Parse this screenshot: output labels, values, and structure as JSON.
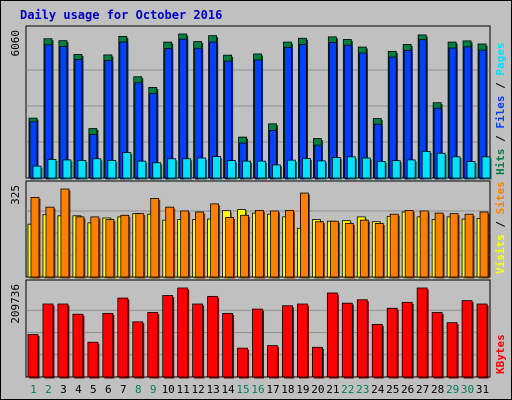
{
  "chart_data": {
    "type": "bar",
    "title": "Daily usage for October 2016",
    "days": [
      "1",
      "2",
      "3",
      "4",
      "5",
      "6",
      "7",
      "8",
      "9",
      "10",
      "11",
      "12",
      "13",
      "14",
      "15",
      "16",
      "17",
      "18",
      "19",
      "20",
      "21",
      "22",
      "23",
      "24",
      "25",
      "26",
      "27",
      "28",
      "29",
      "30",
      "31"
    ],
    "weekend_days": [
      "1",
      "2",
      "8",
      "9",
      "15",
      "16",
      "22",
      "23",
      "29",
      "30"
    ],
    "panels": [
      {
        "id": "hits",
        "ymax": 6060,
        "ymax_label": "6060",
        "series": [
          {
            "name": "Hits",
            "color": "#008040",
            "values": [
              2520,
              5860,
              5780,
              5200,
              2080,
              5180,
              5960,
              4260,
              3810,
              5720,
              6060,
              5740,
              5990,
              5170,
              1720,
              5220,
              2280,
              5720,
              5880,
              1660,
              5940,
              5830,
              5510,
              2500,
              5330,
              5620,
              6020,
              3170,
              5720,
              5770,
              5640
            ]
          },
          {
            "name": "Files",
            "color": "#0040ff",
            "values": [
              2370,
              5610,
              5530,
              4990,
              1830,
              4950,
              5720,
              4010,
              3560,
              5450,
              5840,
              5460,
              5720,
              4920,
              1470,
              4970,
              2000,
              5500,
              5620,
              1380,
              5700,
              5590,
              5260,
              2260,
              5090,
              5370,
              5820,
              2940,
              5470,
              5520,
              5380
            ]
          },
          {
            "name": "Pages",
            "color": "#00e0ff",
            "values": [
              500,
              780,
              760,
              740,
              810,
              740,
              1070,
              710,
              640,
              810,
              810,
              840,
              900,
              730,
              710,
              710,
              550,
              750,
              820,
              720,
              860,
              890,
              840,
              700,
              730,
              760,
              1120,
              1040,
              890,
              690,
              890
            ]
          }
        ]
      },
      {
        "id": "sites",
        "ymax": 325,
        "ymax_label": "325",
        "series": [
          {
            "name": "Visits",
            "color": "#ffff00",
            "values": [
              195,
              230,
              226,
              226,
              200,
              218,
              222,
              234,
              232,
              210,
              212,
              212,
              214,
              245,
              249,
              236,
              232,
              222,
              180,
              212,
              206,
              208,
              222,
              204,
              224,
              240,
              222,
              212,
              222,
              214,
              216
            ]
          },
          {
            "name": "Sites",
            "color": "#ff8000",
            "values": [
              294,
              258,
              325,
              222,
              222,
              212,
              228,
              234,
              290,
              258,
              244,
              240,
              270,
              220,
              228,
              246,
              244,
              246,
              310,
              204,
              206,
              198,
              210,
              198,
              232,
              246,
              244,
              236,
              234,
              232,
              240
            ]
          }
        ]
      },
      {
        "id": "kbytes",
        "ymax": 209736,
        "ymax_label": "209736",
        "series": [
          {
            "name": "KBytes",
            "color": "#ff0000",
            "values": [
              100000,
              172000,
              172000,
              148000,
              82000,
              150000,
              186000,
              130000,
              152000,
              192000,
              209736,
              172000,
              190000,
              150000,
              68000,
              160000,
              74000,
              168000,
              172000,
              70000,
              198000,
              174000,
              182000,
              124000,
              162000,
              176000,
              209736,
              152000,
              128000,
              180000,
              172000
            ]
          }
        ]
      }
    ]
  }
}
